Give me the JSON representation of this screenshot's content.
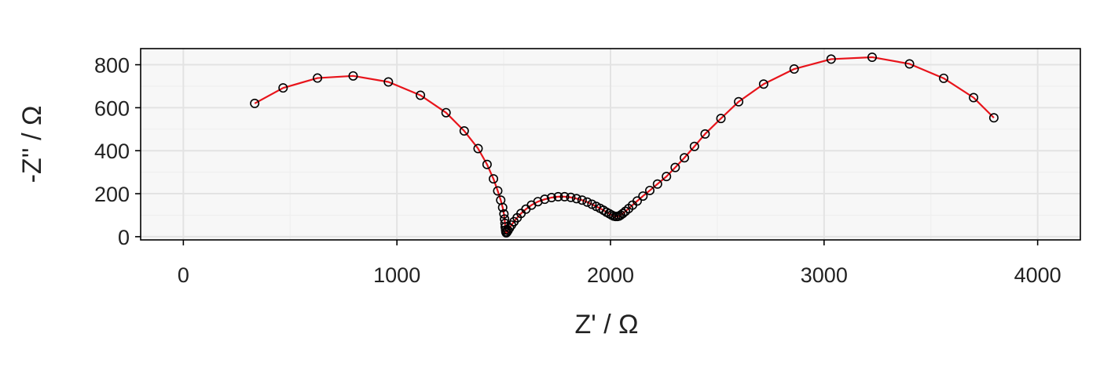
{
  "chart_data": {
    "type": "scatter",
    "title": "",
    "xlabel": "Z' / Ω",
    "ylabel": "-Z'' / Ω",
    "xlim": [
      -200,
      4200
    ],
    "ylim": [
      -15,
      875
    ],
    "x_ticks": [
      0,
      1000,
      2000,
      3000,
      4000
    ],
    "x_tick_labels": [
      "0",
      "1000",
      "2000",
      "3000",
      "4000"
    ],
    "y_ticks": [
      0,
      200,
      400,
      600,
      800
    ],
    "y_tick_labels": [
      "0",
      "200",
      "400",
      "600",
      "800"
    ],
    "grid": true,
    "legend": "none",
    "colors": {
      "panel": "#f7f7f7",
      "grid_major": "#e3e3e3",
      "grid_minor": "#efefef",
      "fit_line": "#e8141b",
      "marker_edge": "#000000",
      "axis": "#000000"
    },
    "series": [
      {
        "role": "measured",
        "style": "open-circle",
        "x": [
          334,
          467,
          628,
          795,
          960,
          1110,
          1230,
          1315,
          1380,
          1422,
          1452,
          1472,
          1486,
          1495,
          1501,
          1504,
          1506,
          1507,
          1509,
          1510,
          1512,
          1515,
          1520,
          1527,
          1536,
          1548,
          1563,
          1581,
          1604,
          1630,
          1660,
          1692,
          1724,
          1755,
          1785,
          1814,
          1841,
          1867,
          1891,
          1913,
          1933,
          1951,
          1967,
          1981,
          1994,
          2005,
          2015,
          2024,
          2032,
          2040,
          2048,
          2058,
          2070,
          2085,
          2103,
          2125,
          2152,
          2184,
          2220,
          2262,
          2303,
          2346,
          2393,
          2443,
          2517,
          2600,
          2717,
          2860,
          3033,
          3225,
          3400,
          3560,
          3700,
          3795
        ],
        "y": [
          620,
          692,
          738,
          748,
          720,
          658,
          577,
          492,
          410,
          336,
          269,
          213,
          170,
          136,
          106,
          82,
          62,
          45,
          31,
          22,
          18,
          21,
          29,
          40,
          54,
          70,
          88,
          108,
          128,
          147,
          163,
          174,
          182,
          186,
          186,
          183,
          177,
          170,
          161,
          151,
          141,
          132,
          123,
          114,
          107,
          101,
          96,
          94,
          94,
          96,
          101,
          108,
          118,
          131,
          147,
          166,
          189,
          215,
          245,
          280,
          322,
          367,
          420,
          478,
          550,
          628,
          710,
          780,
          826,
          835,
          804,
          737,
          647,
          553
        ]
      },
      {
        "role": "fit",
        "style": "line",
        "x": [
          334,
          467,
          628,
          795,
          960,
          1110,
          1230,
          1315,
          1380,
          1422,
          1452,
          1472,
          1486,
          1495,
          1501,
          1504,
          1506,
          1507,
          1509,
          1510,
          1512,
          1515,
          1520,
          1527,
          1536,
          1548,
          1563,
          1581,
          1604,
          1630,
          1660,
          1692,
          1724,
          1755,
          1785,
          1814,
          1841,
          1867,
          1891,
          1913,
          1933,
          1951,
          1967,
          1981,
          1994,
          2005,
          2015,
          2024,
          2032,
          2040,
          2048,
          2058,
          2070,
          2085,
          2103,
          2125,
          2152,
          2184,
          2220,
          2262,
          2303,
          2346,
          2393,
          2443,
          2517,
          2600,
          2717,
          2860,
          3033,
          3225,
          3400,
          3560,
          3700,
          3795
        ],
        "y": [
          620,
          692,
          738,
          748,
          720,
          658,
          577,
          492,
          410,
          336,
          269,
          213,
          170,
          136,
          106,
          82,
          62,
          45,
          31,
          22,
          18,
          21,
          29,
          40,
          54,
          70,
          88,
          108,
          128,
          147,
          163,
          174,
          182,
          186,
          186,
          183,
          177,
          170,
          161,
          151,
          141,
          132,
          123,
          114,
          107,
          101,
          96,
          94,
          94,
          96,
          101,
          108,
          118,
          131,
          147,
          166,
          189,
          215,
          245,
          280,
          322,
          367,
          420,
          478,
          550,
          628,
          710,
          780,
          826,
          835,
          804,
          737,
          647,
          553
        ]
      }
    ]
  }
}
